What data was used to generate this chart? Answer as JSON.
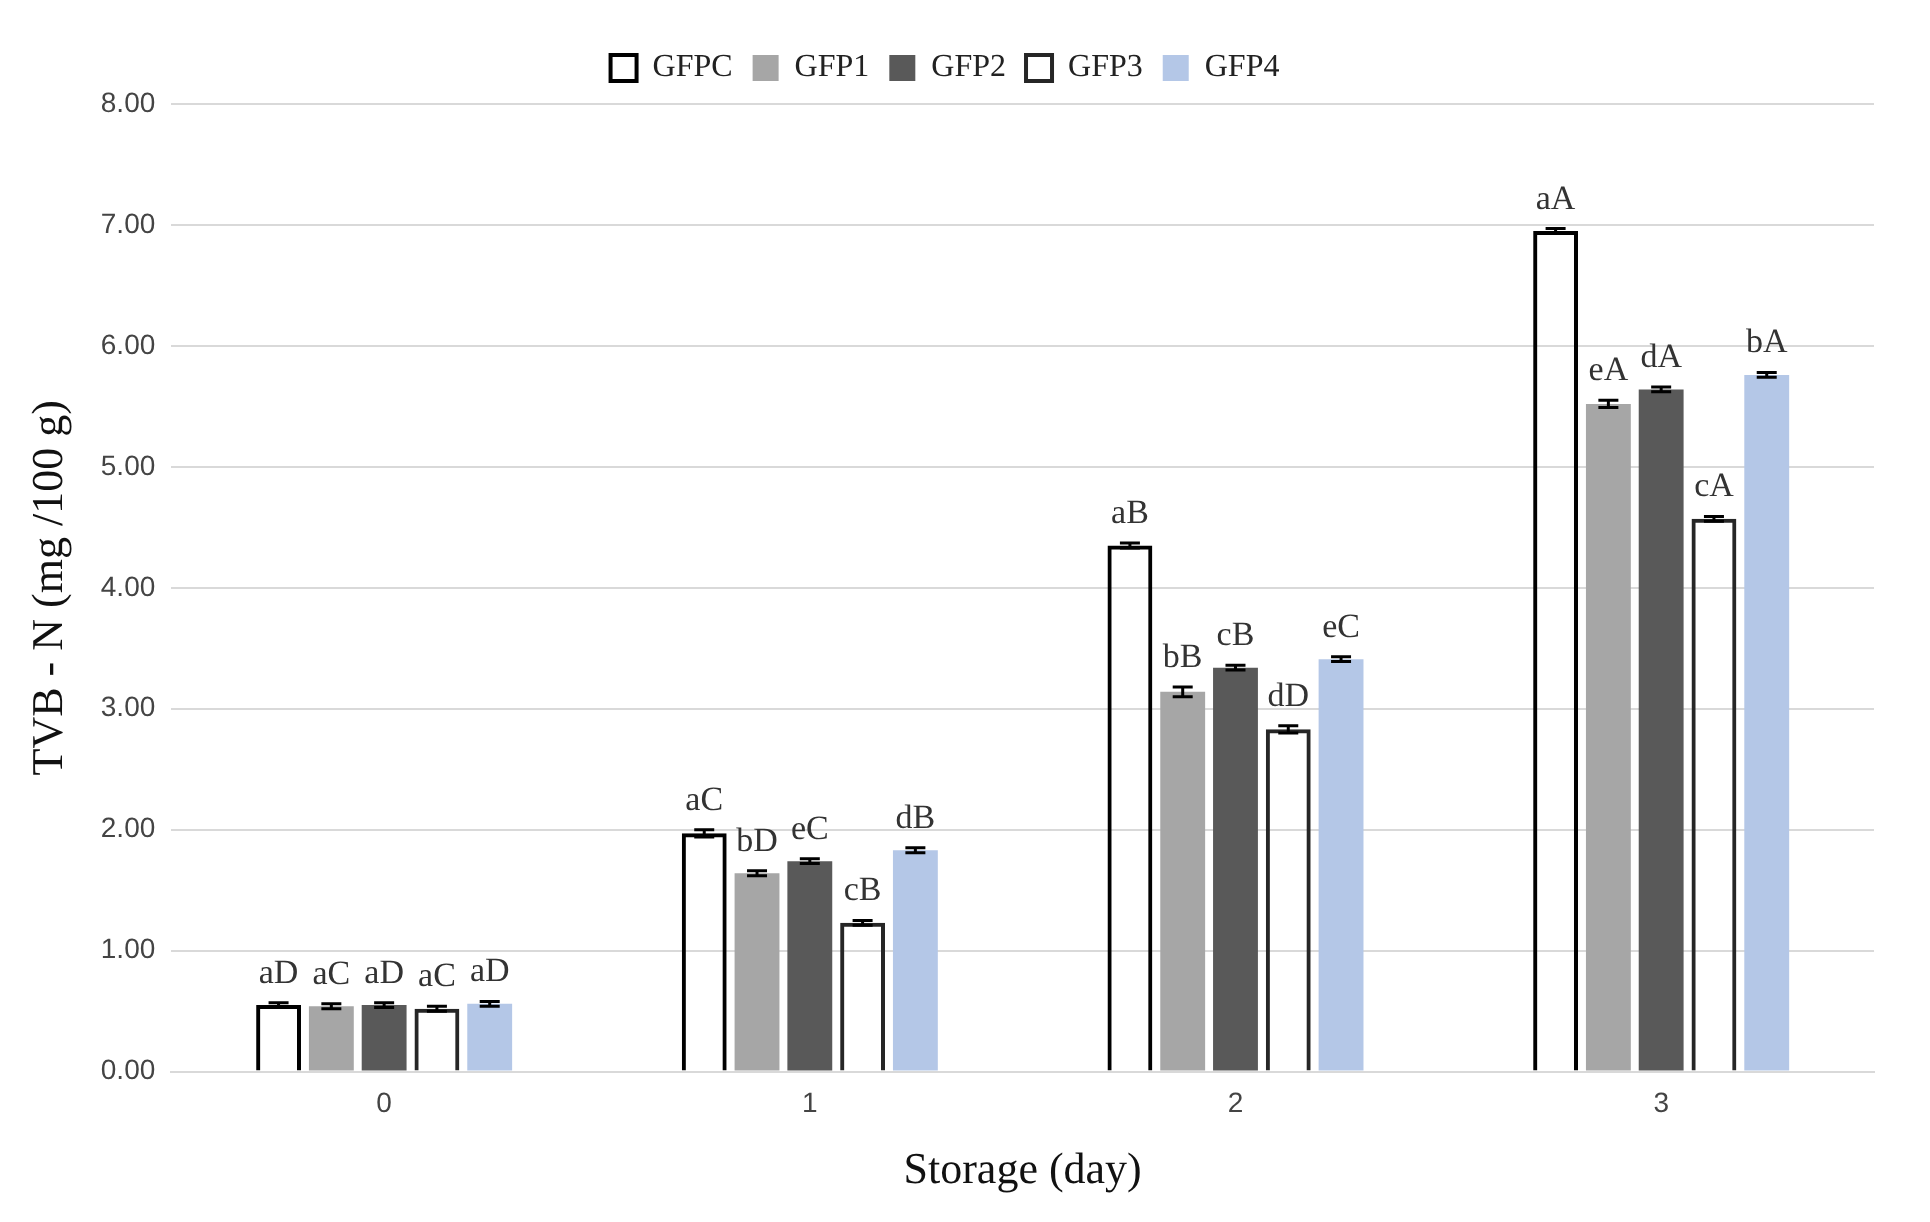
{
  "chart_data": {
    "type": "bar",
    "xlabel": "Storage (day)",
    "ylabel": "TVB - N (mg /100 g)",
    "categories": [
      "0",
      "1",
      "2",
      "3"
    ],
    "series": [
      {
        "name": "GFPC",
        "color": "#000000",
        "values": [
          0.55,
          1.97,
          4.35,
          6.95
        ],
        "errors": [
          0.02,
          0.03,
          0.02,
          0.02
        ],
        "value_labels": [
          "aD",
          "aC",
          "aB",
          "aA"
        ]
      },
      {
        "name": "GFP1",
        "color": "#a6a6a6",
        "values": [
          0.54,
          1.64,
          3.14,
          5.52
        ],
        "errors": [
          0.02,
          0.02,
          0.04,
          0.03
        ],
        "value_labels": [
          "aC",
          "bD",
          "bB",
          "eA"
        ]
      },
      {
        "name": "GFP2",
        "color": "#595959",
        "values": [
          0.55,
          1.74,
          3.34,
          5.64
        ],
        "errors": [
          0.02,
          0.02,
          0.02,
          0.02
        ],
        "value_labels": [
          "aD",
          "eC",
          "cB",
          "dA"
        ]
      },
      {
        "name": "GFP3",
        "color": "#262626",
        "values": [
          0.52,
          1.23,
          2.83,
          4.57
        ],
        "errors": [
          0.02,
          0.02,
          0.03,
          0.02
        ],
        "value_labels": [
          "aC",
          "cB",
          "dD",
          "cA"
        ]
      },
      {
        "name": "GFP4",
        "color": "#b4c7e7",
        "values": [
          0.56,
          1.83,
          3.41,
          5.76
        ],
        "errors": [
          0.02,
          0.02,
          0.02,
          0.02
        ],
        "value_labels": [
          "aD",
          "dB",
          "eC",
          "bA"
        ]
      }
    ],
    "ylim": [
      0,
      8
    ],
    "yticks": [
      {
        "value": 0,
        "label": "0.00"
      },
      {
        "value": 1,
        "label": "1.00"
      },
      {
        "value": 2,
        "label": "2.00"
      },
      {
        "value": 3,
        "label": "3.00"
      },
      {
        "value": 4,
        "label": "4.00"
      },
      {
        "value": 5,
        "label": "5.00"
      },
      {
        "value": 6,
        "label": "6.00"
      },
      {
        "value": 7,
        "label": "7.00"
      },
      {
        "value": 8,
        "label": "8.00"
      }
    ],
    "grid": "y",
    "legend": "top"
  }
}
